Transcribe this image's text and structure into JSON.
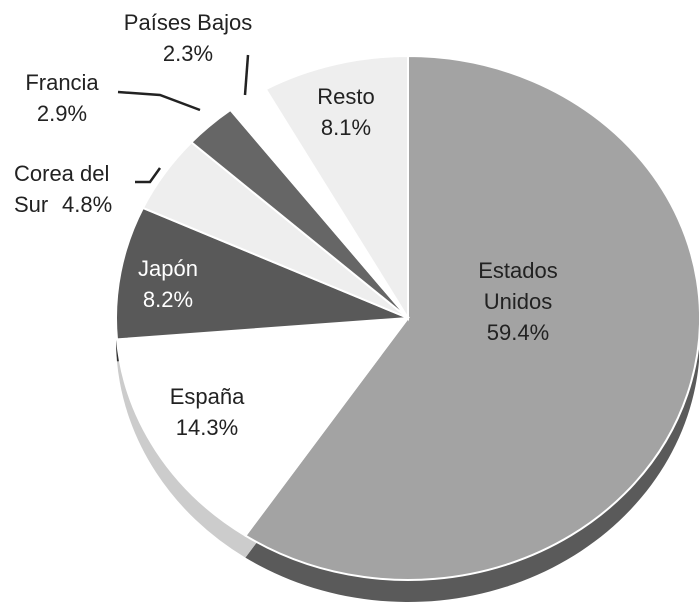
{
  "chart_data": {
    "type": "pie",
    "categories": [
      "Estados Unidos",
      "España",
      "Japón",
      "Corea del Sur",
      "Francia",
      "Países Bajos",
      "Resto"
    ],
    "values": [
      59.4,
      14.3,
      8.2,
      4.8,
      2.9,
      2.3,
      8.1
    ],
    "value_labels": [
      "59.4%",
      "14.3%",
      "8.2%",
      "4.8%",
      "2.9%",
      "2.3%",
      "8.1%"
    ],
    "colors": [
      "#a3a3a3",
      "#ffffff",
      "#595959",
      "#eeeeee",
      "#666666",
      "#ffffff",
      "#eeeeee"
    ]
  }
}
